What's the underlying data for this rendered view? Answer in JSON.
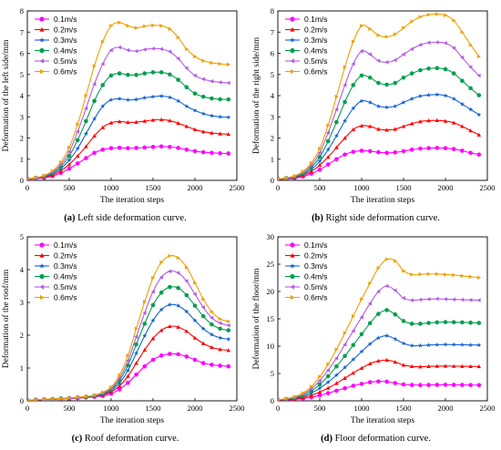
{
  "series_colors": [
    "#ff00ff",
    "#ff0000",
    "#1464d2",
    "#009f4d",
    "#b45ae6",
    "#f0a000"
  ],
  "series_markers": [
    "circle",
    "triangle-up",
    "star",
    "circle",
    "triangle-left",
    "triangle-right"
  ],
  "chart_data": [
    {
      "type": "line",
      "xlabel": "The iteration steps",
      "ylabel": "Deformation of the left side/mm",
      "xlim": [
        0,
        2500
      ],
      "ylim": [
        0,
        8
      ],
      "xticks": [
        0,
        500,
        1000,
        1500,
        2000,
        2500
      ],
      "yticks": [
        0,
        1,
        2,
        3,
        4,
        5,
        6,
        7,
        8
      ],
      "grid": false,
      "legend": "top-left",
      "x": [
        0,
        100,
        200,
        300,
        400,
        500,
        600,
        700,
        800,
        900,
        1000,
        1100,
        1200,
        1300,
        1400,
        1500,
        1600,
        1700,
        1800,
        1900,
        2000,
        2100,
        2200,
        2300,
        2400
      ],
      "series": [
        {
          "name": "0.1m/s",
          "values": [
            0.05,
            0.08,
            0.12,
            0.2,
            0.35,
            0.55,
            0.8,
            1.05,
            1.3,
            1.45,
            1.52,
            1.54,
            1.52,
            1.53,
            1.55,
            1.58,
            1.6,
            1.58,
            1.53,
            1.45,
            1.38,
            1.33,
            1.3,
            1.28,
            1.27
          ]
        },
        {
          "name": "0.2m/s",
          "values": [
            0.05,
            0.09,
            0.15,
            0.25,
            0.45,
            0.75,
            1.15,
            1.6,
            2.1,
            2.5,
            2.72,
            2.78,
            2.74,
            2.75,
            2.8,
            2.85,
            2.87,
            2.82,
            2.7,
            2.55,
            2.4,
            2.3,
            2.24,
            2.2,
            2.18
          ]
        },
        {
          "name": "0.3m/s",
          "values": [
            0.06,
            0.1,
            0.17,
            0.3,
            0.55,
            0.95,
            1.5,
            2.2,
            2.9,
            3.5,
            3.8,
            3.85,
            3.8,
            3.82,
            3.9,
            3.95,
            3.98,
            3.92,
            3.75,
            3.5,
            3.3,
            3.15,
            3.05,
            3.0,
            2.98
          ]
        },
        {
          "name": "0.4m/s",
          "values": [
            0.07,
            0.11,
            0.19,
            0.35,
            0.65,
            1.15,
            1.9,
            2.8,
            3.75,
            4.5,
            4.95,
            5.05,
            4.98,
            4.98,
            5.05,
            5.1,
            5.1,
            5.0,
            4.75,
            4.4,
            4.1,
            3.95,
            3.87,
            3.83,
            3.82
          ]
        },
        {
          "name": "0.5m/s",
          "values": [
            0.07,
            0.12,
            0.21,
            0.4,
            0.75,
            1.35,
            2.3,
            3.4,
            4.55,
            5.5,
            6.15,
            6.28,
            6.15,
            6.1,
            6.18,
            6.22,
            6.2,
            6.08,
            5.75,
            5.3,
            4.95,
            4.78,
            4.68,
            4.63,
            4.6
          ]
        },
        {
          "name": "0.6m/s",
          "values": [
            0.08,
            0.13,
            0.23,
            0.45,
            0.85,
            1.55,
            2.65,
            4.0,
            5.4,
            6.55,
            7.3,
            7.45,
            7.3,
            7.2,
            7.28,
            7.32,
            7.3,
            7.15,
            6.75,
            6.2,
            5.85,
            5.65,
            5.55,
            5.5,
            5.47
          ]
        }
      ]
    },
    {
      "type": "line",
      "xlabel": "The iteration steps",
      "ylabel": "Deformation of the right side/mm",
      "xlim": [
        0,
        2500
      ],
      "ylim": [
        0,
        8
      ],
      "xticks": [
        0,
        500,
        1000,
        1500,
        2000,
        2500
      ],
      "yticks": [
        0,
        1,
        2,
        3,
        4,
        5,
        6,
        7,
        8
      ],
      "grid": false,
      "legend": "top-left",
      "x": [
        0,
        100,
        200,
        300,
        400,
        500,
        600,
        700,
        800,
        900,
        1000,
        1100,
        1200,
        1300,
        1400,
        1500,
        1600,
        1700,
        1800,
        1900,
        2000,
        2100,
        2200,
        2300,
        2400
      ],
      "series": [
        {
          "name": "0.1m/s",
          "values": [
            0.04,
            0.06,
            0.1,
            0.18,
            0.32,
            0.5,
            0.75,
            1.0,
            1.22,
            1.35,
            1.4,
            1.38,
            1.33,
            1.3,
            1.32,
            1.38,
            1.45,
            1.5,
            1.52,
            1.53,
            1.52,
            1.48,
            1.4,
            1.3,
            1.22
          ]
        },
        {
          "name": "0.2m/s",
          "values": [
            0.05,
            0.08,
            0.13,
            0.24,
            0.42,
            0.72,
            1.1,
            1.55,
            2.0,
            2.4,
            2.58,
            2.55,
            2.42,
            2.38,
            2.42,
            2.55,
            2.68,
            2.78,
            2.82,
            2.83,
            2.8,
            2.72,
            2.55,
            2.35,
            2.15
          ]
        },
        {
          "name": "0.3m/s",
          "values": [
            0.05,
            0.09,
            0.15,
            0.28,
            0.52,
            0.9,
            1.45,
            2.1,
            2.8,
            3.4,
            3.75,
            3.68,
            3.5,
            3.45,
            3.5,
            3.68,
            3.85,
            3.98,
            4.03,
            4.05,
            4.0,
            3.85,
            3.6,
            3.35,
            3.1
          ]
        },
        {
          "name": "0.4m/s",
          "values": [
            0.06,
            0.1,
            0.17,
            0.32,
            0.62,
            1.1,
            1.85,
            2.75,
            3.7,
            4.5,
            4.95,
            4.85,
            4.6,
            4.52,
            4.6,
            4.85,
            5.05,
            5.2,
            5.28,
            5.3,
            5.25,
            5.05,
            4.7,
            4.35,
            4.02
          ]
        },
        {
          "name": "0.5m/s",
          "values": [
            0.06,
            0.11,
            0.19,
            0.38,
            0.72,
            1.3,
            2.25,
            3.35,
            4.5,
            5.5,
            6.1,
            5.95,
            5.65,
            5.58,
            5.68,
            5.95,
            6.2,
            6.4,
            6.5,
            6.52,
            6.48,
            6.25,
            5.8,
            5.35,
            4.95
          ]
        },
        {
          "name": "0.6m/s",
          "values": [
            0.07,
            0.12,
            0.21,
            0.42,
            0.82,
            1.5,
            2.6,
            3.95,
            5.35,
            6.55,
            7.3,
            7.15,
            6.85,
            6.78,
            6.9,
            7.2,
            7.5,
            7.72,
            7.82,
            7.85,
            7.8,
            7.55,
            7.0,
            6.4,
            5.85
          ]
        }
      ]
    },
    {
      "type": "line",
      "xlabel": "The iteration steps",
      "ylabel": "Deformation of the roof/mm",
      "xlim": [
        0,
        2500
      ],
      "ylim": [
        0,
        5
      ],
      "xticks": [
        0,
        500,
        1000,
        1500,
        2000,
        2500
      ],
      "yticks": [
        0,
        1,
        2,
        3,
        4,
        5
      ],
      "grid": false,
      "legend": "top-left",
      "x": [
        0,
        100,
        200,
        300,
        400,
        500,
        600,
        700,
        800,
        900,
        1000,
        1100,
        1200,
        1300,
        1400,
        1500,
        1600,
        1700,
        1800,
        1900,
        2000,
        2100,
        2200,
        2300,
        2400
      ],
      "series": [
        {
          "name": "0.1m/s",
          "values": [
            0.02,
            0.03,
            0.04,
            0.05,
            0.06,
            0.07,
            0.08,
            0.1,
            0.12,
            0.15,
            0.22,
            0.35,
            0.55,
            0.8,
            1.05,
            1.25,
            1.38,
            1.43,
            1.42,
            1.35,
            1.25,
            1.15,
            1.1,
            1.07,
            1.05
          ]
        },
        {
          "name": "0.2m/s",
          "values": [
            0.02,
            0.03,
            0.04,
            0.05,
            0.06,
            0.07,
            0.09,
            0.11,
            0.13,
            0.18,
            0.27,
            0.45,
            0.75,
            1.15,
            1.55,
            1.9,
            2.15,
            2.27,
            2.25,
            2.12,
            1.92,
            1.75,
            1.63,
            1.57,
            1.54
          ]
        },
        {
          "name": "0.3m/s",
          "values": [
            0.02,
            0.03,
            0.04,
            0.05,
            0.06,
            0.08,
            0.09,
            0.11,
            0.14,
            0.2,
            0.31,
            0.54,
            0.92,
            1.45,
            1.98,
            2.45,
            2.78,
            2.93,
            2.9,
            2.72,
            2.45,
            2.2,
            2.02,
            1.92,
            1.88
          ]
        },
        {
          "name": "0.4m/s",
          "values": [
            0.02,
            0.03,
            0.04,
            0.05,
            0.07,
            0.08,
            0.1,
            0.12,
            0.15,
            0.22,
            0.35,
            0.62,
            1.08,
            1.72,
            2.35,
            2.92,
            3.3,
            3.47,
            3.44,
            3.22,
            2.9,
            2.58,
            2.33,
            2.2,
            2.15
          ]
        },
        {
          "name": "0.5m/s",
          "values": [
            0.02,
            0.03,
            0.04,
            0.06,
            0.07,
            0.08,
            0.1,
            0.13,
            0.16,
            0.24,
            0.38,
            0.7,
            1.22,
            1.95,
            2.68,
            3.33,
            3.77,
            3.95,
            3.9,
            3.65,
            3.25,
            2.85,
            2.53,
            2.37,
            2.3
          ]
        },
        {
          "name": "0.6m/s",
          "values": [
            0.02,
            0.03,
            0.05,
            0.06,
            0.07,
            0.09,
            0.11,
            0.13,
            0.17,
            0.26,
            0.42,
            0.78,
            1.38,
            2.2,
            3.02,
            3.75,
            4.22,
            4.42,
            4.36,
            4.07,
            3.6,
            3.1,
            2.72,
            2.5,
            2.42
          ]
        }
      ]
    },
    {
      "type": "line",
      "xlabel": "The iteration steps",
      "ylabel": "Deformation of the floor/mm",
      "xlim": [
        0,
        2500
      ],
      "ylim": [
        0,
        30
      ],
      "xticks": [
        0,
        500,
        1000,
        1500,
        2000,
        2500
      ],
      "yticks": [
        0,
        5,
        10,
        15,
        20,
        25,
        30
      ],
      "grid": false,
      "legend": "top-left",
      "x": [
        0,
        100,
        200,
        300,
        400,
        500,
        600,
        700,
        800,
        900,
        1000,
        1100,
        1200,
        1300,
        1400,
        1500,
        1600,
        1700,
        1800,
        1900,
        2000,
        2100,
        2200,
        2300,
        2400
      ],
      "series": [
        {
          "name": "0.1m/s",
          "values": [
            0.1,
            0.15,
            0.25,
            0.4,
            0.65,
            1.0,
            1.4,
            1.85,
            2.3,
            2.75,
            3.1,
            3.4,
            3.55,
            3.5,
            3.25,
            3.0,
            2.9,
            2.88,
            2.9,
            2.92,
            2.93,
            2.92,
            2.9,
            2.88,
            2.87
          ]
        },
        {
          "name": "0.2m/s",
          "values": [
            0.1,
            0.2,
            0.35,
            0.6,
            1.0,
            1.6,
            2.35,
            3.2,
            4.15,
            5.1,
            6.0,
            6.8,
            7.3,
            7.45,
            7.1,
            6.55,
            6.3,
            6.25,
            6.3,
            6.35,
            6.37,
            6.35,
            6.32,
            6.3,
            6.28
          ]
        },
        {
          "name": "0.3m/s",
          "values": [
            0.15,
            0.25,
            0.45,
            0.8,
            1.4,
            2.3,
            3.4,
            4.7,
            6.1,
            7.55,
            9.0,
            10.4,
            11.5,
            11.9,
            11.3,
            10.5,
            10.1,
            10.1,
            10.2,
            10.25,
            10.3,
            10.28,
            10.25,
            10.22,
            10.2
          ]
        },
        {
          "name": "0.4m/s",
          "values": [
            0.15,
            0.3,
            0.55,
            1.0,
            1.8,
            3.0,
            4.5,
            6.3,
            8.2,
            10.2,
            12.2,
            14.2,
            15.9,
            16.6,
            15.8,
            14.6,
            14.1,
            14.1,
            14.25,
            14.35,
            14.4,
            14.38,
            14.35,
            14.3,
            14.25
          ]
        },
        {
          "name": "0.5m/s",
          "values": [
            0.2,
            0.35,
            0.65,
            1.2,
            2.2,
            3.7,
            5.6,
            7.8,
            10.3,
            12.8,
            15.3,
            17.8,
            20.0,
            21.0,
            20.2,
            18.8,
            18.4,
            18.5,
            18.6,
            18.65,
            18.6,
            18.55,
            18.5,
            18.45,
            18.4
          ]
        },
        {
          "name": "0.6m/s",
          "values": [
            0.2,
            0.4,
            0.75,
            1.4,
            2.6,
            4.4,
            6.7,
            9.4,
            12.4,
            15.5,
            18.6,
            21.5,
            24.3,
            25.9,
            25.6,
            23.8,
            23.1,
            23.15,
            23.2,
            23.2,
            23.1,
            23.0,
            22.85,
            22.7,
            22.55
          ]
        }
      ]
    }
  ],
  "captions": [
    {
      "tag": "(a)",
      "text": " Left side deformation curve."
    },
    {
      "tag": "(b)",
      "text": " Right side deformation curve."
    },
    {
      "tag": "(c)",
      "text": " Roof deformation curve."
    },
    {
      "tag": "(d)",
      "text": " Floor deformation curve."
    }
  ]
}
